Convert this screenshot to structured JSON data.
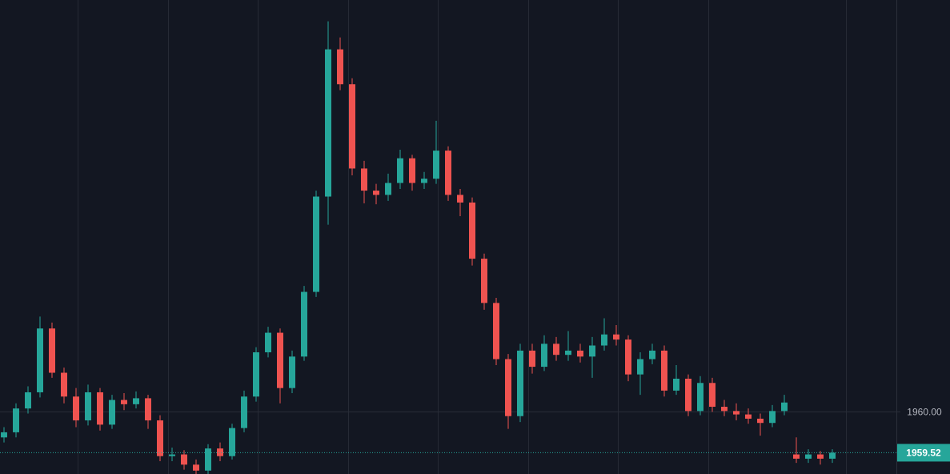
{
  "chart_data": {
    "type": "candlestick",
    "up_color": "#26a69a",
    "down_color": "#ef5350",
    "ylim": [
      1959.27,
      1964.84
    ],
    "yticks": [
      {
        "value": 1960,
        "label": "1960.00"
      }
    ],
    "grid": true,
    "last_price": {
      "value": 1959.52,
      "label": "1959.52"
    },
    "open": [
      1959.7,
      1959.76,
      1960.04,
      1960.23,
      1960.98,
      1960.46,
      1960.18,
      1959.9,
      1960.23,
      1959.85,
      1960.14,
      1960.09,
      1960.16,
      1959.9,
      1959.48,
      1959.5,
      1959.38,
      1959.31,
      1959.57,
      1959.48,
      1959.81,
      1960.18,
      1960.7,
      1960.93,
      1960.28,
      1960.65,
      1961.41,
      1962.53,
      1964.26,
      1963.85,
      1962.86,
      1962.6,
      1962.55,
      1962.69,
      1962.98,
      1962.69,
      1962.74,
      1963.07,
      1962.55,
      1962.46,
      1961.8,
      1961.28,
      1960.62,
      1959.95,
      1960.72,
      1960.53,
      1960.8,
      1960.67,
      1960.72,
      1960.65,
      1960.78,
      1960.91,
      1960.85,
      1960.44,
      1960.62,
      1960.72,
      1960.25,
      1960.39,
      1960.01,
      1960.34,
      1960.06,
      1960.01,
      1959.97,
      1959.92,
      1959.87,
      1960.01,
      1959.5,
      1959.45,
      1959.5,
      1959.45
    ],
    "high": [
      1959.82,
      1960.1,
      1960.3,
      1961.12,
      1961.05,
      1960.52,
      1960.28,
      1960.32,
      1960.28,
      1960.2,
      1960.22,
      1960.24,
      1960.2,
      1959.96,
      1959.58,
      1959.55,
      1959.44,
      1959.62,
      1959.64,
      1959.86,
      1960.25,
      1960.76,
      1961.0,
      1960.98,
      1960.72,
      1961.48,
      1962.6,
      1964.59,
      1964.4,
      1963.92,
      1962.95,
      1962.68,
      1962.8,
      1963.08,
      1963.02,
      1962.82,
      1963.42,
      1963.12,
      1962.62,
      1962.52,
      1961.86,
      1961.34,
      1960.68,
      1960.8,
      1960.8,
      1960.9,
      1960.88,
      1960.95,
      1960.8,
      1960.88,
      1961.1,
      1961.02,
      1960.9,
      1960.7,
      1960.8,
      1960.78,
      1960.55,
      1960.44,
      1960.42,
      1960.4,
      1960.14,
      1960.1,
      1960.04,
      1959.98,
      1960.08,
      1960.2,
      1959.7,
      1959.56,
      1959.54,
      1959.56
    ],
    "low": [
      1959.64,
      1959.7,
      1959.98,
      1960.17,
      1960.4,
      1960.1,
      1959.82,
      1959.84,
      1959.78,
      1959.8,
      1960.02,
      1960.04,
      1959.8,
      1959.42,
      1959.42,
      1959.32,
      1959.27,
      1959.27,
      1959.42,
      1959.44,
      1959.76,
      1960.12,
      1960.64,
      1960.1,
      1960.22,
      1960.6,
      1961.35,
      1962.2,
      1963.78,
      1962.78,
      1962.45,
      1962.44,
      1962.48,
      1962.62,
      1962.6,
      1962.62,
      1962.68,
      1962.48,
      1962.3,
      1961.72,
      1961.2,
      1960.55,
      1959.8,
      1959.88,
      1960.45,
      1960.48,
      1960.6,
      1960.6,
      1960.58,
      1960.4,
      1960.72,
      1960.78,
      1960.36,
      1960.2,
      1960.56,
      1960.18,
      1960.2,
      1959.95,
      1959.96,
      1960.0,
      1959.95,
      1959.9,
      1959.86,
      1959.72,
      1959.82,
      1959.96,
      1959.4,
      1959.4,
      1959.38,
      1959.4
    ],
    "close": [
      1959.76,
      1960.04,
      1960.23,
      1960.98,
      1960.46,
      1960.18,
      1959.9,
      1960.23,
      1959.85,
      1960.14,
      1960.09,
      1960.16,
      1959.9,
      1959.48,
      1959.5,
      1959.38,
      1959.31,
      1959.57,
      1959.48,
      1959.81,
      1960.18,
      1960.7,
      1960.93,
      1960.28,
      1960.65,
      1961.41,
      1962.53,
      1964.26,
      1963.85,
      1962.86,
      1962.6,
      1962.55,
      1962.69,
      1962.98,
      1962.69,
      1962.74,
      1963.07,
      1962.55,
      1962.46,
      1961.8,
      1961.28,
      1960.62,
      1959.95,
      1960.72,
      1960.53,
      1960.8,
      1960.67,
      1960.72,
      1960.65,
      1960.78,
      1960.91,
      1960.85,
      1960.44,
      1960.62,
      1960.72,
      1960.25,
      1960.39,
      1960.01,
      1960.34,
      1960.06,
      1960.01,
      1959.97,
      1959.92,
      1959.87,
      1960.01,
      1960.11,
      1959.45,
      1959.5,
      1959.45,
      1959.52
    ]
  }
}
